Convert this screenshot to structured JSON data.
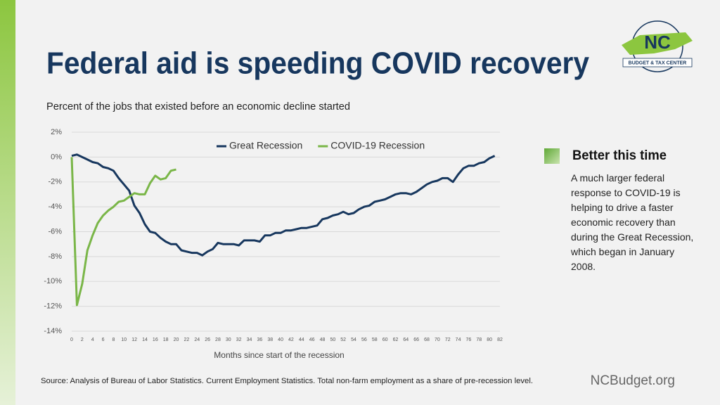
{
  "title": "Federal aid is speeding COVID recovery",
  "subtitle": "Percent of the jobs that existed before an economic decline started",
  "logo": {
    "mark": "NC",
    "name": "BUDGET & TAX CENTER"
  },
  "sidebar": {
    "heading": "Better this time",
    "body": "A much larger federal response to COVID-19 is helping to drive a faster economic recovery than during the Great Recession, which began in January 2008."
  },
  "footer": {
    "source": "Source: Analysis of Bureau of Labor Statistics. Current Employment Statistics. Total non-farm employment as a share of pre-recession level.",
    "site": "NCBudget.org"
  },
  "chart_data": {
    "type": "line",
    "x_label": "Months since start of the recession",
    "x": [
      0,
      1,
      2,
      3,
      4,
      5,
      6,
      7,
      8,
      9,
      10,
      11,
      12,
      13,
      14,
      15,
      16,
      17,
      18,
      19,
      20,
      21,
      22,
      23,
      24,
      25,
      26,
      27,
      28,
      29,
      30,
      31,
      32,
      33,
      34,
      35,
      36,
      37,
      38,
      39,
      40,
      41,
      42,
      43,
      44,
      45,
      46,
      47,
      48,
      49,
      50,
      51,
      52,
      53,
      54,
      55,
      56,
      57,
      58,
      59,
      60,
      61,
      62,
      63,
      64,
      65,
      66,
      67,
      68,
      69,
      70,
      71,
      72,
      73,
      74,
      75,
      76,
      77,
      78,
      79,
      80,
      81
    ],
    "series": [
      {
        "name": "Great Recession",
        "color": "#17375e",
        "values": [
          0.1,
          0.2,
          0,
          -0.2,
          -0.4,
          -0.5,
          -0.8,
          -0.9,
          -1.1,
          -1.7,
          -2.2,
          -2.7,
          -3.9,
          -4.5,
          -5.4,
          -6.0,
          -6.1,
          -6.5,
          -6.8,
          -7.0,
          -7.0,
          -7.5,
          -7.6,
          -7.7,
          -7.7,
          -7.9,
          -7.6,
          -7.4,
          -6.9,
          -7.0,
          -7.0,
          -7.0,
          -7.1,
          -6.7,
          -6.7,
          -6.7,
          -6.8,
          -6.3,
          -6.3,
          -6.1,
          -6.1,
          -5.9,
          -5.9,
          -5.8,
          -5.7,
          -5.7,
          -5.6,
          -5.5,
          -5.0,
          -4.9,
          -4.7,
          -4.6,
          -4.4,
          -4.6,
          -4.5,
          -4.2,
          -4.0,
          -3.9,
          -3.6,
          -3.5,
          -3.4,
          -3.2,
          -3.0,
          -2.9,
          -2.9,
          -3.0,
          -2.8,
          -2.5,
          -2.2,
          -2.0,
          -1.9,
          -1.7,
          -1.7,
          -2.0,
          -1.4,
          -0.9,
          -0.7,
          -0.7,
          -0.5,
          -0.4,
          -0.1,
          0.1
        ]
      },
      {
        "name": "COVID-19 Recession",
        "color": "#7ab648",
        "values": [
          0,
          -11.9,
          -10.2,
          -7.5,
          -6.3,
          -5.3,
          -4.7,
          -4.3,
          -4.0,
          -3.6,
          -3.5,
          -3.2,
          -2.9,
          -3.0,
          -3.0,
          -2.1,
          -1.5,
          -1.8,
          -1.7,
          -1.1,
          -1.0,
          null,
          null,
          null,
          null,
          null,
          null,
          null,
          null,
          null,
          null,
          null,
          null,
          null,
          null,
          null,
          null,
          null,
          null,
          null,
          null,
          null,
          null,
          null,
          null,
          null,
          null,
          null,
          null,
          null,
          null,
          null,
          null,
          null,
          null,
          null,
          null,
          null,
          null,
          null,
          null,
          null,
          null,
          null,
          null,
          null,
          null,
          null,
          null,
          null,
          null,
          null,
          null,
          null,
          null,
          null,
          null,
          null,
          null,
          null,
          null,
          null
        ]
      }
    ],
    "xlim": [
      0,
      82
    ],
    "xticks": [
      0,
      2,
      4,
      6,
      8,
      10,
      12,
      14,
      16,
      18,
      20,
      22,
      24,
      26,
      28,
      30,
      32,
      34,
      36,
      38,
      40,
      42,
      44,
      46,
      48,
      50,
      52,
      54,
      56,
      58,
      60,
      62,
      64,
      66,
      68,
      70,
      72,
      74,
      76,
      78,
      80,
      82
    ],
    "ylim": [
      -14,
      2
    ],
    "yticks": [
      {
        "value": -14,
        "label": "-14%"
      },
      {
        "value": -12,
        "label": "-12%"
      },
      {
        "value": -10,
        "label": "-10%"
      },
      {
        "value": -8,
        "label": "-8%"
      },
      {
        "value": -6,
        "label": "-6%"
      },
      {
        "value": -4,
        "label": "-4%"
      },
      {
        "value": -2,
        "label": "-2%"
      },
      {
        "value": 0,
        "label": "0%"
      },
      {
        "value": 2,
        "label": "2%"
      }
    ],
    "grid": true,
    "legend": "top"
  }
}
